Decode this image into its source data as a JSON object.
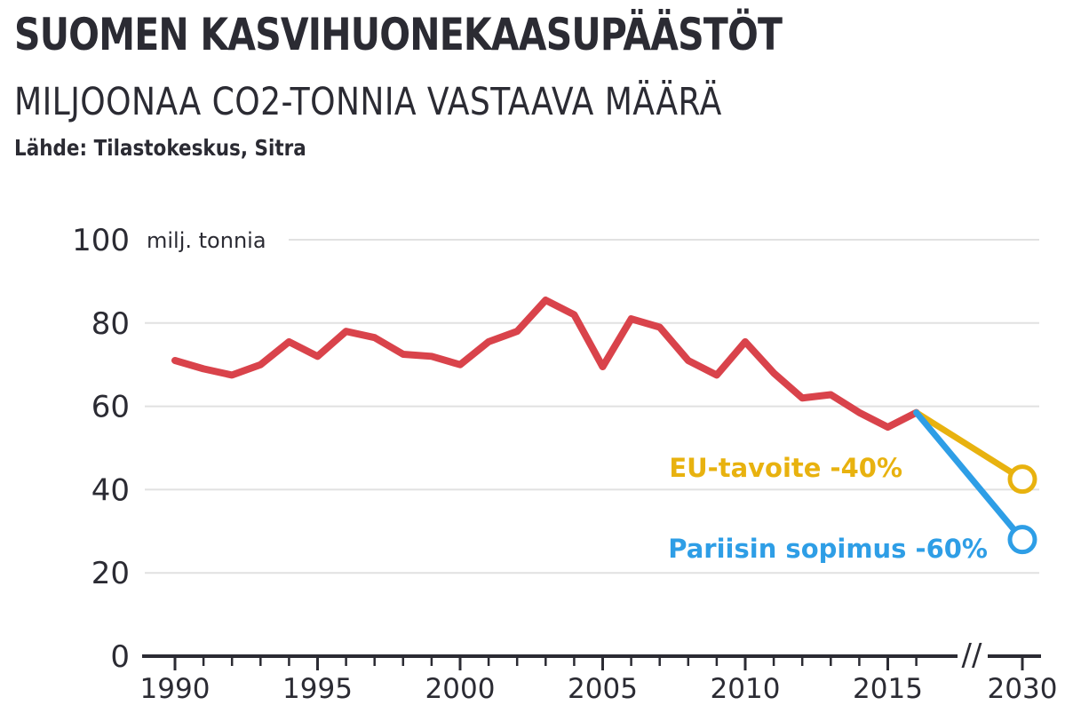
{
  "chart_data": {
    "type": "line",
    "title": "SUOMEN KASVIHUONEKAASUPÄÄSTÖT",
    "subtitle": "MILJOONAA CO2-TONNIA VASTAAVA MÄÄRÄ",
    "source": "Lähde: Tilastokeskus, Sitra",
    "ylabel": "milj. tonnia",
    "ylim": [
      0,
      100
    ],
    "yticks": [
      "0",
      "20",
      "40",
      "60",
      "80",
      "100"
    ],
    "xticks": [
      "1990",
      "1995",
      "2000",
      "2005",
      "2010",
      "2015",
      "2030"
    ],
    "axis_break": "//",
    "grid": true,
    "colors": {
      "history": "#d9434b",
      "eu": "#e8b20f",
      "paris": "#2e9ee6",
      "text": "#2b2b33",
      "grid": "#e1e1e1"
    },
    "series": [
      {
        "x": [
          1990,
          1991,
          1992,
          1993,
          1994,
          1995,
          1996,
          1997,
          1998,
          1999,
          2000,
          2001,
          2002,
          2003,
          2004,
          2005,
          2006,
          2007,
          2008,
          2009,
          2010,
          2011,
          2012,
          2013,
          2014,
          2015,
          2016
        ],
        "values": [
          71,
          69,
          67.5,
          70,
          75.5,
          72,
          78,
          76.5,
          72.5,
          72,
          70,
          75.5,
          78,
          85.5,
          82,
          69.5,
          81,
          79,
          71,
          67.5,
          75.5,
          68,
          62,
          62.8,
          58.5,
          55,
          58.5
        ]
      },
      {
        "name": "EU-tavoite -40%",
        "x": [
          2016,
          2030
        ],
        "values": [
          58.5,
          42.5
        ]
      },
      {
        "name": "Pariisin sopimus -60%",
        "x": [
          2016,
          2030
        ],
        "values": [
          58.5,
          28
        ]
      }
    ]
  }
}
